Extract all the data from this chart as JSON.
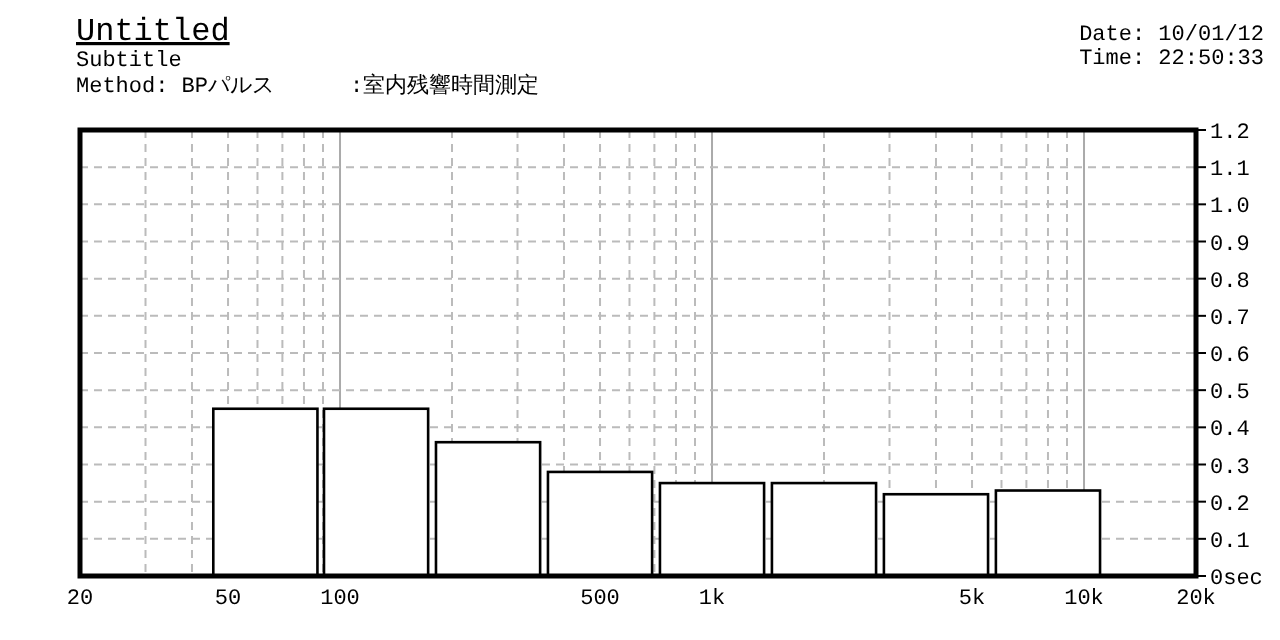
{
  "chart_data": {
    "type": "bar",
    "title": "Untitled",
    "subtitle": "Subtitle",
    "annotations": [
      "Method: BPパルス",
      ":室内残響時間測定",
      "Date: 10/01/12",
      "Time: 22:50:33"
    ],
    "x": [
      63,
      125,
      250,
      500,
      1000,
      2000,
      4000,
      8000
    ],
    "values": [
      0.45,
      0.45,
      0.36,
      0.28,
      0.25,
      0.25,
      0.22,
      0.23
    ],
    "color": "#ffffff",
    "log": "x",
    "xlim": [
      20,
      20000
    ],
    "xticks": [
      20,
      {
        "value": 30,
        "label": null
      },
      {
        "value": 40,
        "label": null
      },
      50,
      {
        "value": 60,
        "label": null
      },
      {
        "value": 70,
        "label": null
      },
      {
        "value": 80,
        "label": null
      },
      {
        "value": 90,
        "label": null
      },
      100,
      {
        "value": 200,
        "label": null
      },
      {
        "value": 300,
        "label": null
      },
      {
        "value": 400,
        "label": null
      },
      500,
      {
        "value": 600,
        "label": null
      },
      {
        "value": 700,
        "label": null
      },
      {
        "value": 800,
        "label": null
      },
      {
        "value": 900,
        "label": null
      },
      {
        "value": 1000,
        "label": "1k"
      },
      {
        "value": 2000,
        "label": null
      },
      {
        "value": 3000,
        "label": null
      },
      {
        "value": 4000,
        "label": null
      },
      {
        "value": 5000,
        "label": "5k"
      },
      {
        "value": 6000,
        "label": null
      },
      {
        "value": 7000,
        "label": null
      },
      {
        "value": 8000,
        "label": null
      },
      {
        "value": 9000,
        "label": null
      },
      {
        "value": 10000,
        "label": "10k"
      },
      {
        "value": 20000,
        "label": "20k"
      }
    ],
    "ylim": [
      0,
      1.2
    ],
    "yticks": [
      {
        "value": 0,
        "label": "0sec"
      },
      0.1,
      0.2,
      0.3,
      0.4,
      0.5,
      0.6,
      0.7,
      0.8,
      0.9,
      {
        "value": 1,
        "label": "1.0"
      },
      1.1,
      1.2
    ],
    "grid": true
  }
}
